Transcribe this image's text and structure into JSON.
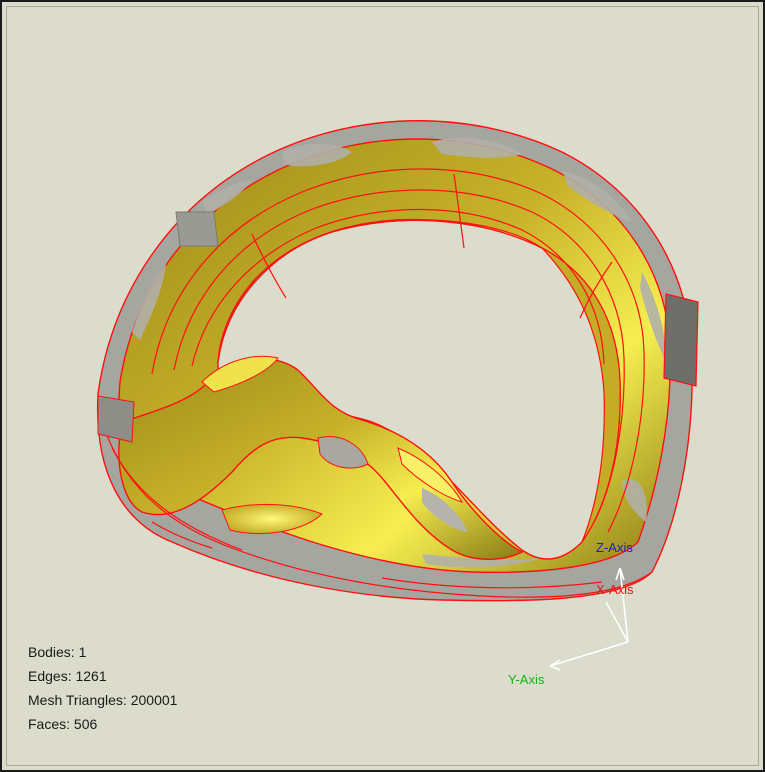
{
  "viewport": {
    "background": "#dcdccc",
    "model": {
      "face_color": "#b8a424",
      "highlight_color": "#f2e84a",
      "mesh_color": "#a8a8a8",
      "edge_color": "#ff1010"
    }
  },
  "stats": {
    "bodies": "Bodies: 1",
    "edges": "Edges: 1261",
    "mesh_triangles": "Mesh Triangles: 200001",
    "faces": "Faces: 506"
  },
  "axes": {
    "z_label": "Z-Axis",
    "x_label": "X-Axis",
    "y_label": "Y-Axis",
    "z_color": "#1a1ad8",
    "x_color": "#e01818",
    "y_color": "#14b414"
  }
}
